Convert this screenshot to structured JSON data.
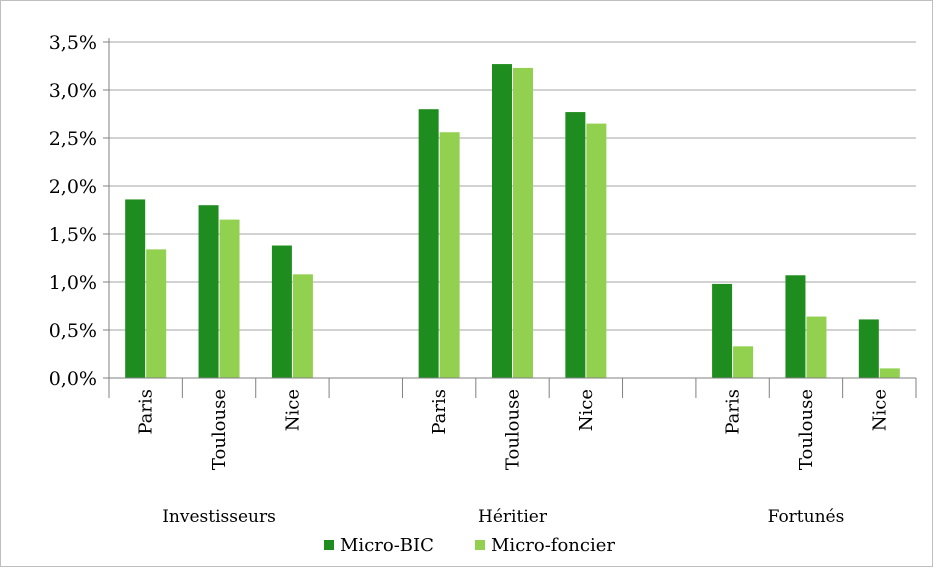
{
  "chart_data": {
    "type": "bar",
    "groups": [
      "Investisseurs",
      "Héritier",
      "Fortunés"
    ],
    "categories": [
      "Paris",
      "Toulouse",
      "Nice"
    ],
    "yticks": [
      "0,0%",
      "0,5%",
      "1,0%",
      "1,5%",
      "2,0%",
      "2,5%",
      "3,0%",
      "3,5%"
    ],
    "ylim": [
      0,
      3.5
    ],
    "grid": true,
    "legend_position": "bottom",
    "series": [
      {
        "name": "Micro-BIC",
        "color": "#1e8c1e",
        "values": [
          [
            1.86,
            1.8,
            1.38
          ],
          [
            2.8,
            3.27,
            2.77
          ],
          [
            0.98,
            1.07,
            0.61
          ]
        ]
      },
      {
        "name": "Micro-foncier",
        "color": "#92d050",
        "values": [
          [
            1.34,
            1.65,
            1.08
          ],
          [
            2.56,
            3.23,
            2.65
          ],
          [
            0.33,
            0.64,
            0.1
          ]
        ]
      }
    ]
  }
}
